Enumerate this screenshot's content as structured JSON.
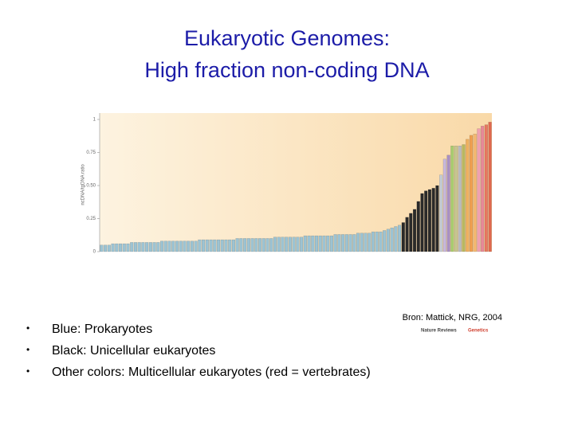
{
  "title_lines": [
    "Eukaryotic Genomes:",
    "High fraction non-coding DNA"
  ],
  "chart_data": {
    "type": "bar",
    "y_label": "ncDNA/tgDNA ratio",
    "ylim": [
      0,
      1
    ],
    "yticks": [
      0,
      0.25,
      {
        "value": 0.5,
        "label": "0.50"
      },
      0.75,
      1
    ],
    "series": [
      {
        "color": "#9cc3d3",
        "values": [
          0.05,
          0.05,
          0.05,
          0.06,
          0.06,
          0.06,
          0.06,
          0.06,
          0.07,
          0.07,
          0.07,
          0.07,
          0.07,
          0.07,
          0.07,
          0.07,
          0.08,
          0.08,
          0.08,
          0.08,
          0.08,
          0.08,
          0.08,
          0.08,
          0.08,
          0.08,
          0.09,
          0.09,
          0.09,
          0.09,
          0.09,
          0.09,
          0.09,
          0.09,
          0.09,
          0.09,
          0.1,
          0.1,
          0.1,
          0.1,
          0.1,
          0.1,
          0.1,
          0.1,
          0.1,
          0.1,
          0.11,
          0.11,
          0.11,
          0.11,
          0.11,
          0.11,
          0.11,
          0.11,
          0.12,
          0.12,
          0.12,
          0.12,
          0.12,
          0.12,
          0.12,
          0.12,
          0.13,
          0.13,
          0.13,
          0.13,
          0.13,
          0.13,
          0.14,
          0.14,
          0.14,
          0.14,
          0.15,
          0.15,
          0.15,
          0.16,
          0.17,
          0.18,
          0.19,
          0.2
        ]
      },
      {
        "color": "#2a2a2a",
        "values": [
          0.22,
          0.26,
          0.29,
          0.32,
          0.38,
          0.44,
          0.46,
          0.47,
          0.48,
          0.5
        ]
      },
      {
        "colors": [
          "#c4ccd4",
          "#c8b8dc",
          "#a88fc4",
          "#a8cc70",
          "#c8c890",
          "#b8bcc0",
          "#b8b860",
          "#f0b060",
          "#f0a050",
          "#f4b870",
          "#f0a0b0",
          "#e88898",
          "#e87860",
          "#e06850"
        ],
        "values": [
          0.58,
          0.7,
          0.73,
          0.8,
          0.8,
          0.8,
          0.81,
          0.85,
          0.88,
          0.89,
          0.93,
          0.95,
          0.96,
          0.98
        ]
      }
    ]
  },
  "source": "Bron: Mattick, NRG, 2004",
  "logo": [
    "Nature Reviews",
    "Genetics"
  ],
  "bullets": [
    "Blue: Prokaryotes",
    "Black: Unicellular eukaryotes",
    "Other colors: Multicellular eukaryotes (red = vertebrates)"
  ]
}
